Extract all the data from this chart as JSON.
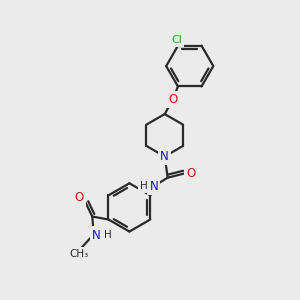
{
  "background_color": "#ebebeb",
  "bond_color": "#2a2a2a",
  "bond_width": 1.6,
  "atom_colors": {
    "C": "#2a2a2a",
    "N": "#1414cc",
    "O": "#cc1414",
    "Cl": "#22aa22",
    "H": "#2a2a2a"
  }
}
